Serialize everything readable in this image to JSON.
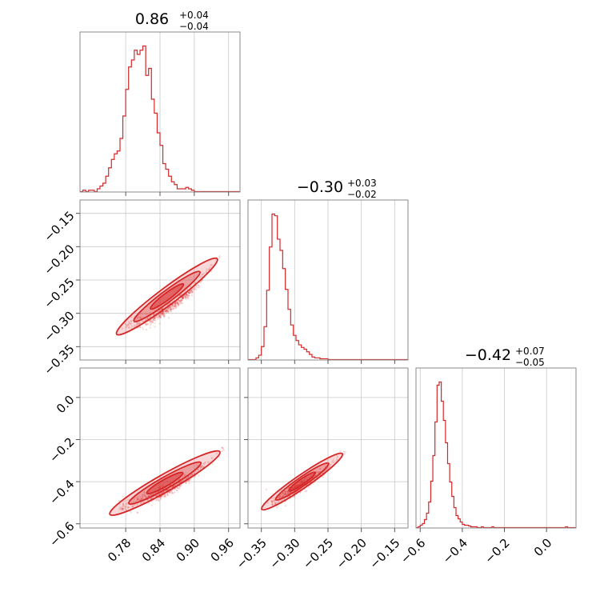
{
  "chart_data": {
    "type": "corner",
    "color": "#d62728",
    "grid": true,
    "params": [
      {
        "median": "0.86",
        "plus": "+0.04",
        "minus": "−0.04",
        "range": [
          0.7,
          0.98
        ],
        "ticks": [
          0.78,
          0.84,
          0.9,
          0.96
        ],
        "tick_labels": [
          "0.78",
          "0.84",
          "0.90",
          "0.96"
        ]
      },
      {
        "median": "−0.30",
        "plus": "+0.03",
        "minus": "−0.02",
        "range": [
          -0.37,
          -0.13
        ],
        "ticks": [
          -0.35,
          -0.3,
          -0.25,
          -0.2,
          -0.15
        ],
        "tick_labels": [
          "−0.35",
          "−0.30",
          "−0.25",
          "−0.20",
          "−0.15"
        ]
      },
      {
        "median": "−0.42",
        "plus": "+0.07",
        "minus": "−0.05",
        "range": [
          -0.62,
          0.14
        ],
        "ticks": [
          -0.6,
          -0.4,
          -0.2,
          0.0
        ],
        "tick_labels": [
          "−0.6",
          "−0.4",
          "−0.2",
          "0.0"
        ]
      }
    ],
    "histograms": [
      {
        "edges_start": 0.7,
        "bin_width": 0.005,
        "counts": [
          0,
          1,
          0,
          1,
          1,
          0,
          2,
          4,
          6,
          11,
          17,
          23,
          27,
          29,
          38,
          54,
          73,
          89,
          94,
          101,
          98,
          101,
          104,
          83,
          88,
          66,
          56,
          42,
          33,
          20,
          16,
          11,
          7,
          5,
          2,
          2,
          2,
          3,
          2,
          1,
          0,
          0,
          0,
          0,
          0,
          0,
          0,
          0,
          0,
          0,
          0,
          0,
          0,
          0,
          0,
          0
        ]
      },
      {
        "edges_start": -0.37,
        "bin_width": 0.004,
        "counts": [
          0,
          0,
          0,
          2,
          5,
          15,
          38,
          80,
          130,
          168,
          166,
          139,
          126,
          105,
          81,
          58,
          40,
          28,
          22,
          17,
          14,
          12,
          9,
          6,
          3,
          2,
          2,
          1,
          1,
          1,
          0,
          0,
          0,
          0,
          0,
          0,
          0,
          0,
          0,
          0,
          0,
          0,
          0,
          0,
          0,
          0,
          0,
          0,
          0,
          0,
          0,
          0,
          0,
          0,
          0,
          0,
          0,
          0,
          0,
          0
        ]
      },
      {
        "edges_start": -0.62,
        "bin_width": 0.01,
        "counts": [
          0,
          1,
          3,
          5,
          10,
          18,
          32,
          58,
          90,
          132,
          178,
          182,
          158,
          134,
          106,
          80,
          57,
          39,
          25,
          15,
          11,
          7,
          4,
          3,
          3,
          2,
          1,
          1,
          1,
          0,
          0,
          1,
          0,
          0,
          0,
          0,
          1,
          0,
          0,
          0,
          0,
          0,
          0,
          0,
          0,
          0,
          0,
          0,
          0,
          0,
          0,
          0,
          0,
          0,
          0,
          0,
          0,
          0,
          0,
          0,
          0,
          0,
          0,
          0,
          0,
          0,
          0,
          0,
          0,
          0,
          0,
          1,
          0,
          0,
          0,
          0
        ]
      }
    ],
    "joint": [
      {
        "x_param": 0,
        "y_param": 1,
        "trend": [
          [
            0.785,
            -0.318
          ],
          [
            0.82,
            -0.31
          ],
          [
            0.86,
            -0.29
          ],
          [
            0.9,
            -0.262
          ],
          [
            0.945,
            -0.215
          ]
        ]
      },
      {
        "x_param": 0,
        "y_param": 2,
        "trend": [
          [
            0.775,
            -0.52
          ],
          [
            0.82,
            -0.478
          ],
          [
            0.86,
            -0.43
          ],
          [
            0.9,
            -0.365
          ],
          [
            0.95,
            -0.25
          ]
        ]
      },
      {
        "x_param": 1,
        "y_param": 2,
        "trend": [
          [
            -0.335,
            -0.5
          ],
          [
            -0.31,
            -0.455
          ],
          [
            -0.29,
            -0.42
          ],
          [
            -0.26,
            -0.36
          ],
          [
            -0.225,
            -0.26
          ]
        ]
      }
    ]
  }
}
